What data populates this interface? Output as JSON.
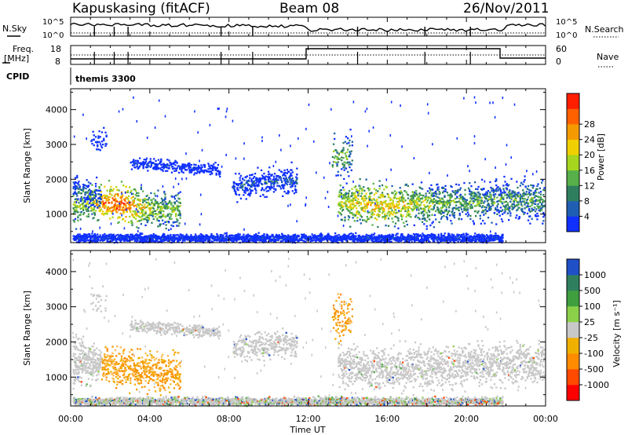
{
  "header": {
    "station": "Kapuskasing (fitACF)",
    "beam": "Beam 08",
    "date": "26/Nov/2011"
  },
  "status_panels": {
    "nsky_label": "N.Sky",
    "nsky_ticks": [
      "10^5",
      "10^0"
    ],
    "nsearch_label": "N.Search",
    "freq_label_1": "Freq.",
    "freq_label_2": "[MHz]",
    "freq_ticks": [
      "18",
      "8"
    ],
    "nave_ticks": [
      "60",
      "0"
    ],
    "nave_label": "Nave",
    "cpid_label": "CPID",
    "cpid_value": "themis 3300"
  },
  "chart_data": [
    {
      "type": "heatmap",
      "name": "power",
      "xlabel": "Time UT",
      "ylabel": "Slant Range [km]",
      "x_ticks": [
        "00:00",
        "04:00",
        "08:00",
        "12:00",
        "16:00",
        "20:00",
        "00:00"
      ],
      "xlim_hours": [
        0,
        24
      ],
      "ylim_km": [
        180,
        4600
      ],
      "y_ticks": [
        1000,
        2000,
        3000,
        4000
      ],
      "colorbar_label": "Power [dB]",
      "colorbar_ticks": [
        4,
        8,
        12,
        16,
        20,
        24,
        28
      ],
      "colorbar_colors": [
        "#1030ff",
        "#1f5fb3",
        "#2f7f5f",
        "#58b04a",
        "#a6d61e",
        "#f0d000",
        "#f49a00",
        "#ff6000",
        "#ff1e00"
      ]
    },
    {
      "type": "heatmap",
      "name": "velocity",
      "xlabel": "Time UT",
      "ylabel": "Slant Range [km]",
      "x_ticks": [
        "00:00",
        "04:00",
        "08:00",
        "12:00",
        "16:00",
        "20:00",
        "00:00"
      ],
      "xlim_hours": [
        0,
        24
      ],
      "ylim_km": [
        180,
        4600
      ],
      "y_ticks": [
        1000,
        2000,
        3000,
        4000
      ],
      "colorbar_label": "Velocity [m s⁻¹]",
      "colorbar_ticks": [
        "1000",
        "500",
        "100",
        "25",
        "-25",
        "-100",
        "-500",
        "-1000"
      ],
      "colorbar_colors": [
        "#2050c8",
        "#2f7f5f",
        "#3f9f3f",
        "#8cd04a",
        "#c8c8c8",
        "#f0b000",
        "#ff8c00",
        "#ff4a00",
        "#ff0000"
      ]
    }
  ]
}
